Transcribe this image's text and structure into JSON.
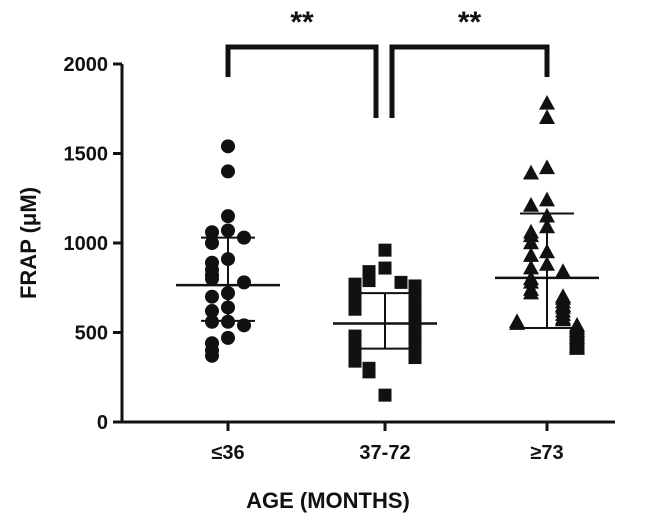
{
  "chart_data": {
    "type": "scatter",
    "title": "",
    "ylabel": "FRAP (μM)",
    "xlabel": "AGE (MONTHS)",
    "ylim": [
      0,
      2000
    ],
    "yticks": [
      0,
      500,
      1000,
      1500,
      2000
    ],
    "grid": false,
    "categories": [
      "≤36",
      "37-72",
      "≥73"
    ],
    "series": [
      {
        "category": "≤36",
        "marker": "circle",
        "mean": 765,
        "sd_upper": 1030,
        "sd_lower": 565,
        "values": [
          1540,
          1400,
          1150,
          1070,
          1060,
          1030,
          1000,
          910,
          890,
          850,
          820,
          800,
          780,
          720,
          700,
          640,
          620,
          560,
          560,
          540,
          470,
          440,
          400,
          370
        ]
      },
      {
        "category": "37-72",
        "marker": "square",
        "mean": 550,
        "sd_upper": 720,
        "sd_lower": 410,
        "values": [
          960,
          860,
          840,
          800,
          790,
          780,
          770,
          760,
          740,
          730,
          720,
          710,
          700,
          690,
          680,
          660,
          650,
          640,
          630,
          620,
          610,
          600,
          590,
          580,
          570,
          560,
          550,
          540,
          530,
          520,
          510,
          500,
          480,
          470,
          460,
          450,
          440,
          430,
          410,
          400,
          390,
          380,
          370,
          360,
          340,
          300,
          280,
          150
        ]
      },
      {
        "category": "≥73",
        "marker": "triangle",
        "mean": 805,
        "sd_upper": 1165,
        "sd_lower": 525,
        "values": [
          1780,
          1700,
          1420,
          1390,
          1240,
          1210,
          1150,
          1090,
          1060,
          1040,
          1000,
          950,
          930,
          880,
          860,
          840,
          800,
          780,
          740,
          720,
          700,
          690,
          670,
          650,
          640,
          620,
          600,
          580,
          570,
          560,
          550,
          540,
          530,
          520,
          510,
          500,
          490,
          480,
          470,
          460,
          450,
          440,
          430,
          420,
          410
        ]
      }
    ],
    "significance": [
      {
        "from": "≤36",
        "to": "37-72",
        "label": "**"
      },
      {
        "from": "37-72",
        "to": "≥73",
        "label": "**"
      }
    ]
  }
}
